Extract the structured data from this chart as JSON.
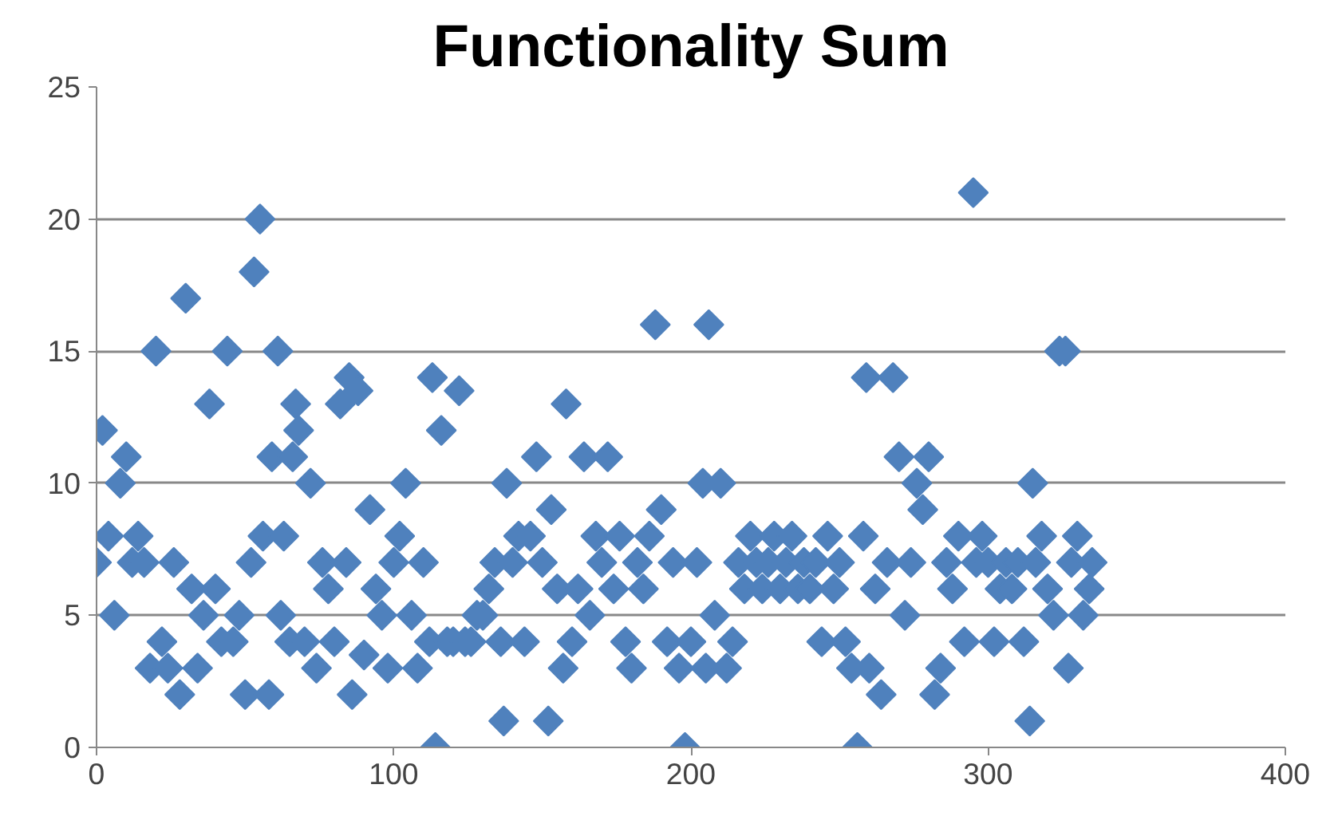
{
  "chart_data": {
    "type": "scatter",
    "title": "Functionality Sum",
    "x": [
      2,
      0,
      4,
      6,
      8,
      10,
      12,
      14,
      16,
      18,
      20,
      22,
      24,
      26,
      28,
      30,
      32,
      34,
      36,
      38,
      40,
      42,
      44,
      46,
      48,
      50,
      52,
      53,
      55,
      56,
      58,
      59,
      61,
      62,
      63,
      65,
      66,
      67,
      68,
      70,
      72,
      74,
      76,
      78,
      80,
      82,
      84,
      85,
      86,
      88,
      90,
      92,
      94,
      96,
      98,
      100,
      102,
      104,
      106,
      108,
      110,
      112,
      113,
      114,
      116,
      118,
      120,
      122,
      124,
      126,
      128,
      130,
      132,
      134,
      136,
      137,
      138,
      140,
      142,
      144,
      146,
      148,
      150,
      152,
      153,
      155,
      157,
      158,
      160,
      162,
      164,
      166,
      168,
      170,
      172,
      174,
      176,
      178,
      180,
      182,
      184,
      186,
      188,
      190,
      192,
      194,
      196,
      198,
      200,
      202,
      204,
      205,
      206,
      208,
      210,
      212,
      214,
      216,
      218,
      220,
      222,
      224,
      226,
      228,
      230,
      232,
      234,
      236,
      238,
      240,
      242,
      244,
      246,
      248,
      250,
      252,
      254,
      256,
      258,
      259,
      260,
      262,
      264,
      266,
      268,
      270,
      272,
      274,
      276,
      278,
      280,
      282,
      284,
      286,
      288,
      290,
      292,
      295,
      296,
      298,
      300,
      302,
      304,
      306,
      308,
      310,
      312,
      314,
      315,
      316,
      318,
      320,
      322,
      324,
      326,
      327,
      328,
      330,
      332,
      334,
      335
    ],
    "values": [
      12,
      7,
      8,
      5,
      10,
      11,
      7,
      8,
      7,
      3,
      15,
      4,
      3,
      7,
      2,
      17,
      6,
      3,
      5,
      13,
      6,
      4,
      15,
      4,
      5,
      2,
      7,
      18,
      20,
      8,
      2,
      11,
      15,
      5,
      8,
      4,
      11,
      13,
      12,
      4,
      10,
      3,
      7,
      6,
      4,
      13,
      7,
      14,
      2,
      13.5,
      3.5,
      9,
      6,
      5,
      3,
      7,
      8,
      10,
      5,
      3,
      7,
      4,
      14,
      0,
      12,
      4,
      4,
      13.5,
      4,
      4,
      5,
      5,
      6,
      7,
      4,
      1,
      10,
      7,
      8,
      4,
      8,
      11,
      7,
      1,
      9,
      6,
      3,
      13,
      4,
      6,
      11,
      5,
      8,
      7,
      11,
      6,
      8,
      4,
      3,
      7,
      6,
      8,
      16,
      9,
      4,
      7,
      3,
      0,
      4,
      7,
      10,
      3,
      16,
      5,
      10,
      3,
      4,
      7,
      6,
      8,
      7,
      6,
      7,
      8,
      6,
      7,
      8,
      6,
      7,
      6,
      7,
      4,
      8,
      6,
      7,
      4,
      3,
      0,
      8,
      14,
      3,
      6,
      2,
      7,
      14,
      11,
      5,
      7,
      10,
      9,
      11,
      2,
      3,
      7,
      6,
      8,
      4,
      21,
      7,
      8,
      7,
      4,
      6,
      7,
      6,
      7,
      4,
      1,
      10,
      7,
      8,
      6,
      5,
      15,
      15,
      3,
      7,
      8,
      5,
      6,
      7
    ],
    "color": "#4f81bd",
    "marker": "diamond",
    "xlim": [
      0,
      400
    ],
    "xticks": [
      0,
      100,
      200,
      300,
      400
    ],
    "ylim": [
      0,
      25
    ],
    "yticks": [
      0,
      5,
      10,
      15,
      20,
      25
    ],
    "grid": "y"
  }
}
